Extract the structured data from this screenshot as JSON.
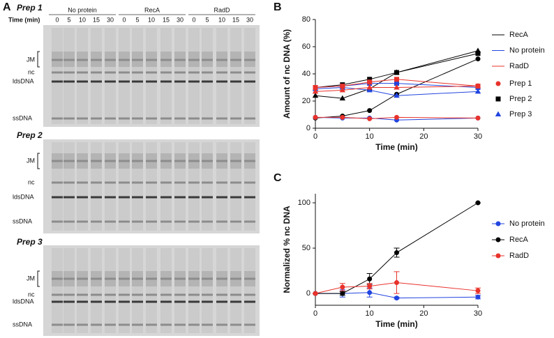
{
  "panels": [
    "A",
    "B",
    "C"
  ],
  "gel": {
    "preps": [
      "Prep 1",
      "Prep 2",
      "Prep 3"
    ],
    "groups": [
      "No protein",
      "RecA",
      "RadD"
    ],
    "time_label": "Time (min)",
    "times": [
      "0",
      "5",
      "10",
      "15",
      "30"
    ],
    "bands": [
      "JM",
      "nc",
      "ldsDNA",
      "ssDNA"
    ]
  },
  "chart_data": [
    {
      "type": "line",
      "xlabel": "Time (min)",
      "ylabel": "Amount of nc DNA (%)",
      "x": [
        0,
        5,
        10,
        15,
        30
      ],
      "xlim": [
        0,
        30
      ],
      "xticks": [
        0,
        10,
        20,
        30
      ],
      "ylim": [
        0,
        80
      ],
      "yticks": [
        0,
        20,
        40,
        60,
        80
      ],
      "prep_legend_colors": [
        "#e8322b",
        "#000000",
        "#2145e0"
      ],
      "series": [
        {
          "name": "RecA",
          "prep": "Prep 1",
          "color": "#000000",
          "marker": "circle",
          "values": [
            7.5,
            9,
            13,
            25,
            51
          ]
        },
        {
          "name": "RecA",
          "prep": "Prep 2",
          "color": "#000000",
          "marker": "square",
          "values": [
            30,
            32,
            36,
            41,
            55
          ]
        },
        {
          "name": "RecA",
          "prep": "Prep 3",
          "color": "#000000",
          "marker": "triangle",
          "values": [
            24,
            22,
            29,
            41,
            57
          ]
        },
        {
          "name": "No  protein",
          "prep": "Prep 1",
          "color": "#2145e0",
          "marker": "circle",
          "values": [
            8,
            7.5,
            7.5,
            6,
            7.5
          ]
        },
        {
          "name": "No  protein",
          "prep": "Prep 2",
          "color": "#2145e0",
          "marker": "square",
          "values": [
            30,
            31,
            33,
            33,
            30
          ]
        },
        {
          "name": "No  protein",
          "prep": "Prep 3",
          "color": "#2145e0",
          "marker": "triangle",
          "values": [
            29,
            30,
            28,
            24,
            27
          ]
        },
        {
          "name": "RadD",
          "prep": "Prep 1",
          "color": "#e8322b",
          "marker": "circle",
          "values": [
            8,
            8,
            7,
            8,
            7.5
          ]
        },
        {
          "name": "RadD",
          "prep": "Prep 2",
          "color": "#e8322b",
          "marker": "square",
          "values": [
            30,
            31,
            34,
            36,
            31
          ]
        },
        {
          "name": "RadD",
          "prep": "Prep 3",
          "color": "#e8322b",
          "marker": "triangle",
          "values": [
            27,
            28,
            30,
            30,
            31
          ]
        }
      ]
    },
    {
      "type": "line",
      "xlabel": "Time (min)",
      "ylabel": "Normalized % nc DNA",
      "x": [
        0,
        5,
        10,
        15,
        30
      ],
      "xlim": [
        0,
        30
      ],
      "xticks": [
        0,
        10,
        20,
        30
      ],
      "ylim": [
        -13,
        110
      ],
      "yticks": [
        0,
        50,
        100
      ],
      "series": [
        {
          "name": "No protein",
          "color": "#2145e0",
          "marker": "circle",
          "values": [
            0,
            0,
            1,
            -5,
            -4
          ],
          "errors": [
            0,
            4,
            5,
            1,
            2
          ]
        },
        {
          "name": "RecA",
          "color": "#000000",
          "marker": "circle",
          "values": [
            0,
            0,
            16,
            45,
            100
          ],
          "errors": [
            0,
            2,
            6,
            5,
            0
          ]
        },
        {
          "name": "RadD",
          "color": "#e8322b",
          "marker": "circle",
          "values": [
            0,
            7,
            8,
            12,
            3
          ],
          "errors": [
            0,
            4,
            3,
            12,
            3
          ]
        }
      ]
    }
  ]
}
